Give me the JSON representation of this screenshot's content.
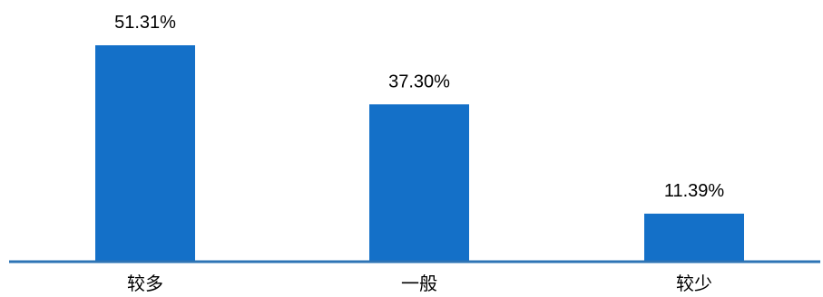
{
  "chart_data": {
    "type": "bar",
    "categories": [
      "较多",
      "一般",
      "较少"
    ],
    "values": [
      51.31,
      37.3,
      11.39
    ],
    "value_labels": [
      "51.31%",
      "37.30%",
      "11.39%"
    ],
    "ylim": [
      0,
      60
    ],
    "grid": false,
    "legend": "none"
  },
  "colors": {
    "bar": "#1470C8",
    "axis": "#2E74B5",
    "text": "#000000"
  }
}
